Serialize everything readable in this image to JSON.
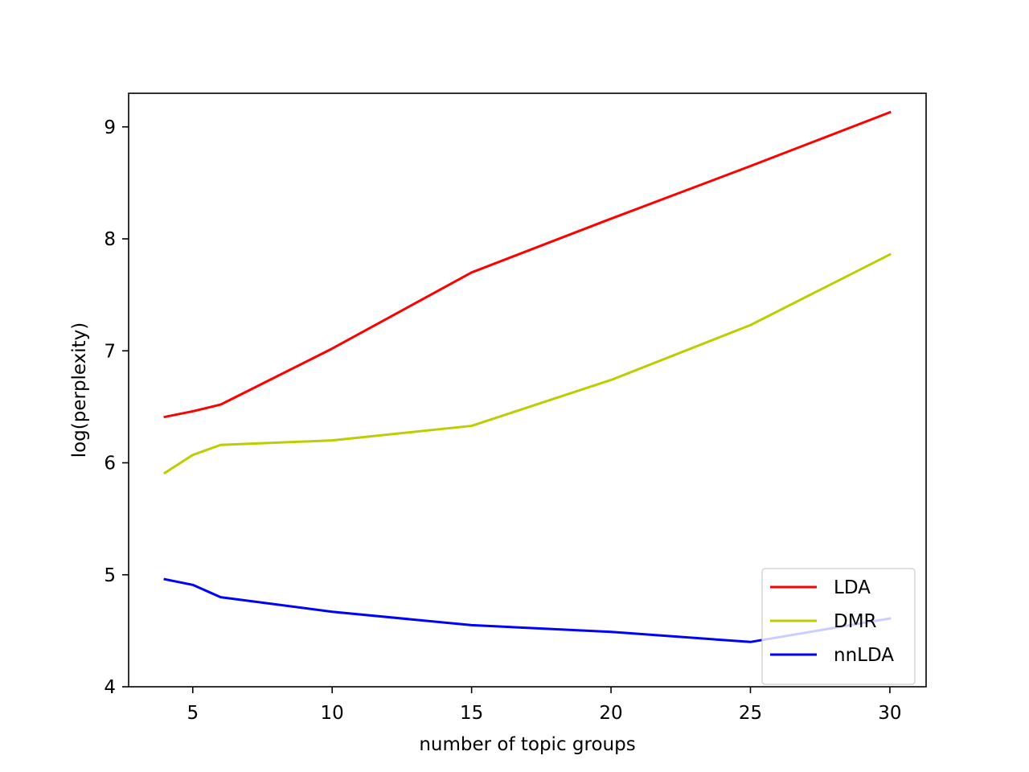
{
  "chart_data": {
    "type": "line",
    "title": "",
    "xlabel": "number of topic groups",
    "ylabel": "log(perplexity)",
    "xlim": [
      2.7,
      31.3
    ],
    "ylim": [
      4,
      9.3
    ],
    "xticks": [
      5,
      10,
      15,
      20,
      25,
      30
    ],
    "yticks": [
      4,
      5,
      6,
      7,
      8,
      9
    ],
    "xtick_labels": [
      "5",
      "10",
      "15",
      "20",
      "25",
      "30"
    ],
    "ytick_labels": [
      "4",
      "5",
      "6",
      "7",
      "8",
      "9"
    ],
    "grid": false,
    "legend_position": "lower-right",
    "x": [
      4,
      5,
      6,
      10,
      15,
      20,
      25,
      30
    ],
    "series": [
      {
        "name": "LDA",
        "color": "#ff0000",
        "values": [
          6.41,
          6.46,
          6.52,
          7.02,
          7.7,
          8.18,
          8.65,
          9.13
        ]
      },
      {
        "name": "DMR",
        "color": "#bcce00",
        "values": [
          5.91,
          6.07,
          6.16,
          6.2,
          6.33,
          6.74,
          7.23,
          7.86
        ]
      },
      {
        "name": "nnLDA",
        "color": "#0000ff",
        "values": [
          4.96,
          4.91,
          4.8,
          4.67,
          4.55,
          4.49,
          4.4,
          4.61
        ]
      }
    ]
  }
}
